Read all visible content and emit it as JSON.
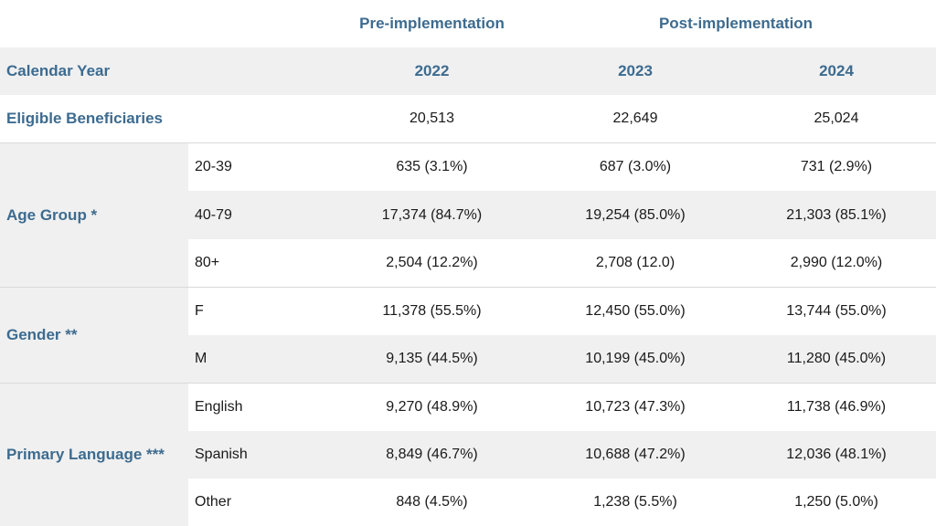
{
  "header": {
    "pre_label": "Pre-implementation",
    "post_label": "Post-implementation"
  },
  "year_row": {
    "label": "Calendar Year",
    "years": [
      "2022",
      "2023",
      "2024"
    ]
  },
  "eligible_row": {
    "label": "Eligible Beneficiaries",
    "values": [
      "20,513",
      "22,649",
      "25,024"
    ]
  },
  "groups": [
    {
      "label": "Age Group *",
      "rows": [
        {
          "sub": "20-39",
          "values": [
            "635 (3.1%)",
            "687 (3.0%)",
            "731 (2.9%)"
          ]
        },
        {
          "sub": "40-79",
          "values": [
            "17,374 (84.7%)",
            "19,254 (85.0%)",
            "21,303 (85.1%)"
          ]
        },
        {
          "sub": "80+",
          "values": [
            "2,504 (12.2%)",
            "2,708 (12.0)",
            "2,990 (12.0%)"
          ]
        }
      ]
    },
    {
      "label": "Gender **",
      "rows": [
        {
          "sub": "F",
          "values": [
            "11,378 (55.5%)",
            "12,450 (55.0%)",
            "13,744 (55.0%)"
          ]
        },
        {
          "sub": "M",
          "values": [
            "9,135 (44.5%)",
            "10,199 (45.0%)",
            "11,280 (45.0%)"
          ]
        }
      ]
    },
    {
      "label": "Primary Language ***",
      "rows": [
        {
          "sub": "English",
          "values": [
            "9,270 (48.9%)",
            "10,723 (47.3%)",
            "11,738 (46.9%)"
          ]
        },
        {
          "sub": "Spanish",
          "values": [
            "8,849 (46.7%)",
            "10,688 (47.2%)",
            "12,036 (48.1%)"
          ]
        },
        {
          "sub": "Other",
          "values": [
            "848 (4.5%)",
            "1,238 (5.5%)",
            "1,250 (5.0%)"
          ]
        }
      ]
    }
  ]
}
